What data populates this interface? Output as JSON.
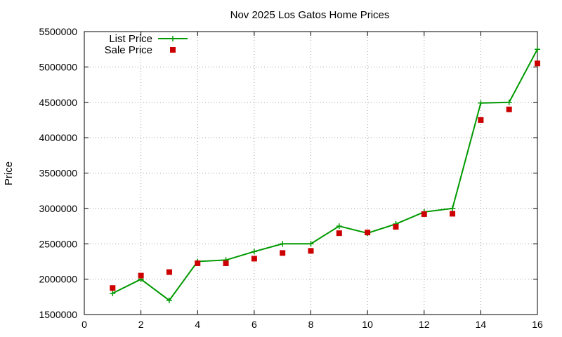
{
  "chart_data": {
    "type": "line",
    "title": "Nov 2025 Los Gatos Home Prices",
    "xlabel": "",
    "ylabel": "Price",
    "xlim": [
      0,
      16
    ],
    "ylim": [
      1500000,
      5500000
    ],
    "x_ticks": [
      0,
      2,
      4,
      6,
      8,
      10,
      12,
      14,
      16
    ],
    "y_ticks": [
      1500000,
      2000000,
      2500000,
      3000000,
      3500000,
      4000000,
      4500000,
      5000000,
      5500000
    ],
    "grid": true,
    "legend_position": "top-left",
    "series": [
      {
        "name": "List Price",
        "style": "line-points",
        "color": "#009900",
        "x": [
          1,
          2,
          3,
          4,
          5,
          6,
          7,
          8,
          9,
          10,
          11,
          12,
          13,
          14,
          15,
          16
        ],
        "values": [
          1800000,
          1999000,
          1700000,
          2250000,
          2270000,
          2390000,
          2500000,
          2500000,
          2750000,
          2650000,
          2780000,
          2950000,
          3000000,
          4490000,
          4500000,
          5250000
        ]
      },
      {
        "name": "Sale Price",
        "style": "points",
        "color": "#cc0000",
        "x": [
          1,
          2,
          3,
          4,
          5,
          6,
          7,
          8,
          9,
          10,
          11,
          12,
          13,
          14,
          15,
          16
        ],
        "values": [
          1875000,
          2050000,
          2100000,
          2225000,
          2225000,
          2290000,
          2370000,
          2400000,
          2650000,
          2660000,
          2740000,
          2920000,
          2925000,
          4250000,
          4400000,
          5050000
        ]
      }
    ]
  }
}
